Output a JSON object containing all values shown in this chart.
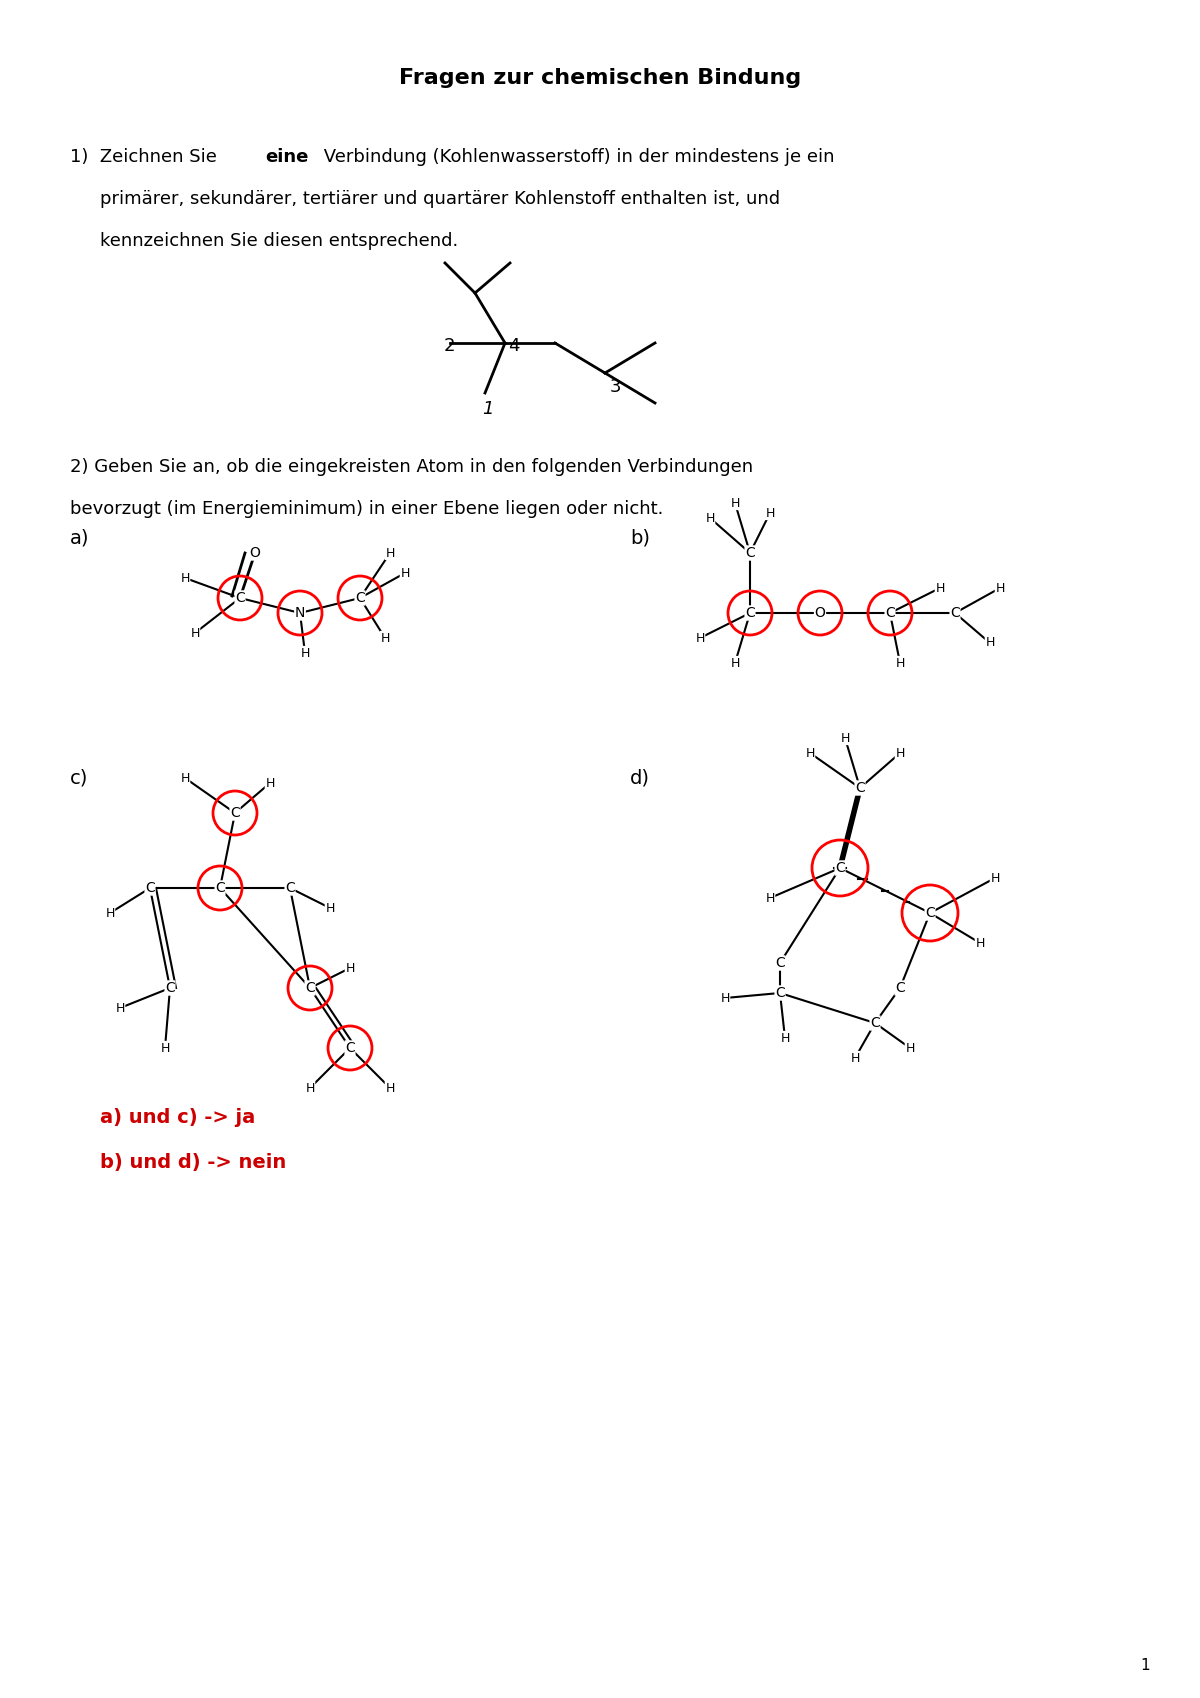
{
  "title": "Fragen zur chemischen Bindung",
  "background_color": "#ffffff",
  "text_color": "#000000",
  "red_color": "#cc0000",
  "page_number": "1",
  "q1_line1": "1)  Zeichnen Sie ",
  "q1_eine": "eine",
  "q1_line1b": " Verbindung (Kohlenwasserstoff) in der mindestens je ein",
  "q1_line2": "    primärer, sekundärer, tertiärer und quartärer Kohlenstoff enthalten ist, und",
  "q1_line3": "    kennzeichnen Sie diesen entsprechend.",
  "q2_line1": "2) Geben Sie an, ob die eingekreisten Atom in den folgenden Verbindungen",
  "q2_line2": "bevorzugt (im Energieminimum) in einer Ebene liegen oder nicht.",
  "answer1": "a) und c) -> ja",
  "answer2": "b) und d) -> nein"
}
